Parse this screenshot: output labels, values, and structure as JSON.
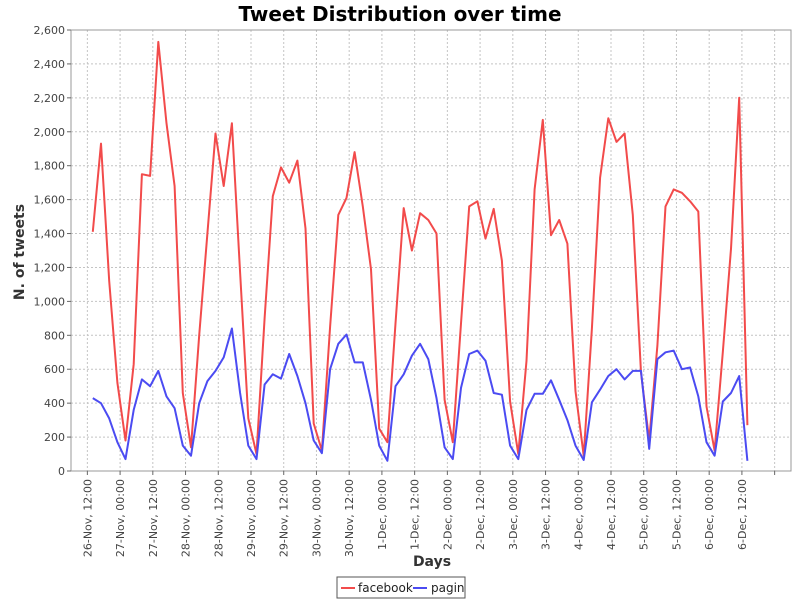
{
  "chart_data": {
    "type": "line",
    "title": "Tweet Distribution over time",
    "xlabel": "Days",
    "ylabel": "N. of tweets",
    "ylim": [
      0,
      2600
    ],
    "yticks": [
      0,
      200,
      400,
      600,
      800,
      1000,
      1200,
      1400,
      1600,
      1800,
      2000,
      2200,
      2400,
      2600
    ],
    "ytick_labels": [
      "0",
      "200",
      "400",
      "600",
      "800",
      "1,000",
      "1,200",
      "1,400",
      "1,600",
      "1,800",
      "2,000",
      "2,200",
      "2,400",
      "2,600"
    ],
    "xlim_hours": [
      -6,
      258
    ],
    "xticks_hours": [
      0,
      12,
      24,
      36,
      48,
      60,
      72,
      84,
      96,
      108,
      120,
      132,
      144,
      156,
      168,
      180,
      192,
      204,
      216,
      228,
      240,
      252
    ],
    "xtick_labels": [
      "26-Nov, 12:00",
      "27-Nov, 00:00",
      "27-Nov, 12:00",
      "28-Nov, 00:00",
      "28-Nov, 12:00",
      "29-Nov, 00:00",
      "29-Nov, 12:00",
      "30-Nov, 00:00",
      "30-Nov, 12:00",
      "1-Dec, 00:00",
      "1-Dec, 12:00",
      "2-Dec, 00:00",
      "2-Dec, 12:00",
      "3-Dec, 00:00",
      "3-Dec, 12:00",
      "4-Dec, 00:00",
      "4-Dec, 12:00",
      "5-Dec, 00:00",
      "5-Dec, 12:00",
      "6-Dec, 00:00",
      "6-Dec, 12:00",
      ""
    ],
    "grid": true,
    "legend_position": "bottom-center",
    "series": [
      {
        "name": "facebook",
        "color": "#f24b4b",
        "points": [
          [
            2,
            1410
          ],
          [
            5,
            1930
          ],
          [
            8,
            1120
          ],
          [
            11,
            520
          ],
          [
            14,
            180
          ],
          [
            17,
            630
          ],
          [
            20,
            1750
          ],
          [
            23,
            1740
          ],
          [
            26,
            2530
          ],
          [
            29,
            2050
          ],
          [
            32,
            1680
          ],
          [
            35,
            460
          ],
          [
            38,
            140
          ],
          [
            41,
            800
          ],
          [
            44,
            1400
          ],
          [
            47,
            1990
          ],
          [
            50,
            1680
          ],
          [
            53,
            2050
          ],
          [
            56,
            1170
          ],
          [
            59,
            310
          ],
          [
            62,
            100
          ],
          [
            65,
            900
          ],
          [
            68,
            1620
          ],
          [
            71,
            1790
          ],
          [
            74,
            1700
          ],
          [
            77,
            1830
          ],
          [
            80,
            1430
          ],
          [
            83,
            280
          ],
          [
            86,
            120
          ],
          [
            89,
            850
          ],
          [
            92,
            1510
          ],
          [
            95,
            1610
          ],
          [
            98,
            1880
          ],
          [
            101,
            1560
          ],
          [
            104,
            1190
          ],
          [
            107,
            250
          ],
          [
            110,
            170
          ],
          [
            113,
            870
          ],
          [
            116,
            1550
          ],
          [
            119,
            1300
          ],
          [
            122,
            1520
          ],
          [
            125,
            1480
          ],
          [
            128,
            1400
          ],
          [
            131,
            420
          ],
          [
            134,
            170
          ],
          [
            137,
            870
          ],
          [
            140,
            1560
          ],
          [
            143,
            1590
          ],
          [
            146,
            1370
          ],
          [
            149,
            1545
          ],
          [
            152,
            1240
          ],
          [
            155,
            410
          ],
          [
            158,
            100
          ],
          [
            161,
            650
          ],
          [
            164,
            1660
          ],
          [
            167,
            2070
          ],
          [
            170,
            1390
          ],
          [
            173,
            1480
          ],
          [
            176,
            1340
          ],
          [
            179,
            470
          ],
          [
            182,
            90
          ],
          [
            185,
            840
          ],
          [
            188,
            1730
          ],
          [
            191,
            2080
          ],
          [
            194,
            1940
          ],
          [
            197,
            1990
          ],
          [
            200,
            1510
          ],
          [
            203,
            580
          ],
          [
            206,
            180
          ],
          [
            209,
            740
          ],
          [
            212,
            1560
          ],
          [
            215,
            1660
          ],
          [
            218,
            1640
          ],
          [
            221,
            1590
          ],
          [
            224,
            1530
          ],
          [
            227,
            380
          ],
          [
            230,
            120
          ],
          [
            233,
            700
          ],
          [
            236,
            1310
          ],
          [
            239,
            2200
          ],
          [
            242,
            270
          ]
        ]
      },
      {
        "name": "pagin",
        "color": "#4b4bf2",
        "points": [
          [
            2,
            430
          ],
          [
            5,
            400
          ],
          [
            8,
            310
          ],
          [
            11,
            170
          ],
          [
            14,
            70
          ],
          [
            17,
            360
          ],
          [
            20,
            540
          ],
          [
            23,
            500
          ],
          [
            26,
            590
          ],
          [
            29,
            440
          ],
          [
            32,
            370
          ],
          [
            35,
            150
          ],
          [
            38,
            90
          ],
          [
            41,
            400
          ],
          [
            44,
            530
          ],
          [
            47,
            590
          ],
          [
            50,
            670
          ],
          [
            53,
            840
          ],
          [
            56,
            460
          ],
          [
            59,
            150
          ],
          [
            62,
            70
          ],
          [
            65,
            510
          ],
          [
            68,
            570
          ],
          [
            71,
            545
          ],
          [
            74,
            690
          ],
          [
            77,
            560
          ],
          [
            80,
            400
          ],
          [
            83,
            180
          ],
          [
            86,
            105
          ],
          [
            89,
            600
          ],
          [
            92,
            750
          ],
          [
            95,
            805
          ],
          [
            98,
            640
          ],
          [
            101,
            640
          ],
          [
            104,
            420
          ],
          [
            107,
            150
          ],
          [
            110,
            60
          ],
          [
            113,
            500
          ],
          [
            116,
            570
          ],
          [
            119,
            680
          ],
          [
            122,
            750
          ],
          [
            125,
            660
          ],
          [
            128,
            430
          ],
          [
            131,
            140
          ],
          [
            134,
            70
          ],
          [
            137,
            490
          ],
          [
            140,
            690
          ],
          [
            143,
            710
          ],
          [
            146,
            650
          ],
          [
            149,
            460
          ],
          [
            152,
            450
          ],
          [
            155,
            150
          ],
          [
            158,
            70
          ],
          [
            161,
            360
          ],
          [
            164,
            455
          ],
          [
            167,
            455
          ],
          [
            170,
            535
          ],
          [
            173,
            420
          ],
          [
            176,
            300
          ],
          [
            179,
            150
          ],
          [
            182,
            65
          ],
          [
            185,
            405
          ],
          [
            188,
            480
          ],
          [
            191,
            560
          ],
          [
            194,
            600
          ],
          [
            197,
            540
          ],
          [
            200,
            590
          ],
          [
            203,
            590
          ],
          [
            206,
            130
          ],
          [
            209,
            660
          ],
          [
            212,
            700
          ],
          [
            215,
            710
          ],
          [
            218,
            600
          ],
          [
            221,
            610
          ],
          [
            224,
            440
          ],
          [
            227,
            170
          ],
          [
            230,
            90
          ],
          [
            233,
            410
          ],
          [
            236,
            460
          ],
          [
            239,
            560
          ],
          [
            242,
            60
          ]
        ]
      }
    ]
  }
}
